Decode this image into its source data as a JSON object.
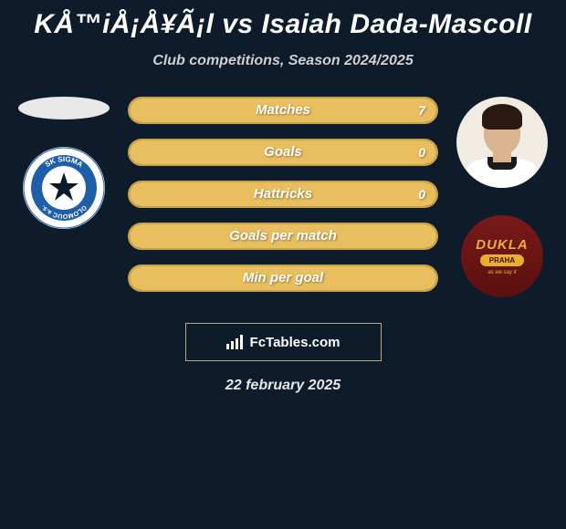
{
  "title": "KÅ™iÅ¡Å¥Ã¡l vs Isaiah Dada-Mascoll",
  "subtitle": "Club competitions, Season 2024/2025",
  "date": "22 february 2025",
  "watermark": "FcTables.com",
  "colors": {
    "background": "#0d1b2a",
    "bar_border": "#c7a24a",
    "bar_fill": "#e9be5f",
    "text_white": "#ffffff",
    "text_grey": "#d0d0d0"
  },
  "left_player": {
    "has_photo": false,
    "crest": "sigma"
  },
  "right_player": {
    "has_photo": true,
    "crest": "dukla"
  },
  "crest_sigma": {
    "outer_ring": "#ffffff",
    "blue": "#1f5fa8",
    "text_top": "SK SIGMA",
    "text_bottom": "OLOMOUC a.s."
  },
  "crest_dukla": {
    "name": "DUKLA",
    "sub": "PRAHA",
    "tag": "as we say it"
  },
  "bars": [
    {
      "label": "Matches",
      "left_val": "",
      "right_val": "7",
      "left_pct": 0,
      "right_pct": 100
    },
    {
      "label": "Goals",
      "left_val": "",
      "right_val": "0",
      "left_pct": 50,
      "right_pct": 50
    },
    {
      "label": "Hattricks",
      "left_val": "",
      "right_val": "0",
      "left_pct": 50,
      "right_pct": 50
    },
    {
      "label": "Goals per match",
      "left_val": "",
      "right_val": "",
      "left_pct": 50,
      "right_pct": 50
    },
    {
      "label": "Min per goal",
      "left_val": "",
      "right_val": "",
      "left_pct": 50,
      "right_pct": 50
    }
  ]
}
